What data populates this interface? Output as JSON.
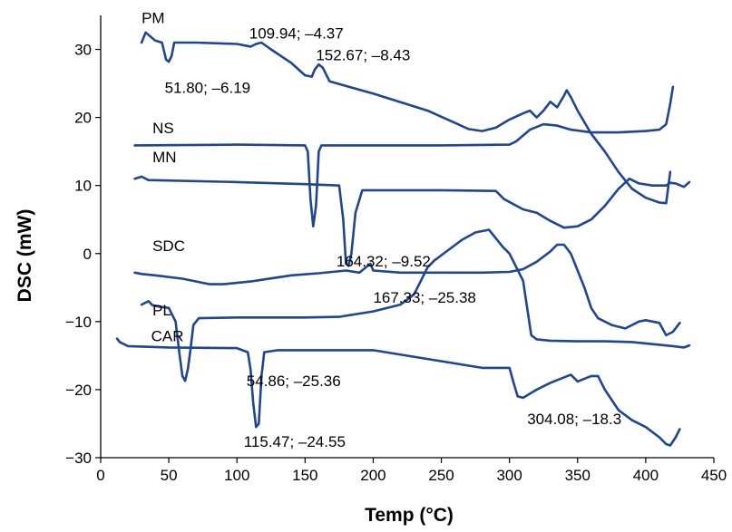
{
  "chart_data": {
    "type": "line",
    "title": "",
    "xlabel": "Temp (°C)",
    "ylabel": "DSC (mW)",
    "xlim": [
      0,
      450
    ],
    "ylim": [
      -30,
      35
    ],
    "x_ticks": [
      0,
      50,
      100,
      150,
      200,
      250,
      300,
      350,
      400,
      450
    ],
    "y_ticks": [
      -30,
      -20,
      -10,
      0,
      10,
      20,
      30
    ],
    "grid": false,
    "legend": "none",
    "line_color": "#1f4597",
    "series": [
      {
        "name": "PM",
        "label_at": [
          30,
          33.9
        ],
        "points": [
          [
            30,
            31
          ],
          [
            33,
            32.5
          ],
          [
            40,
            31.3
          ],
          [
            45,
            31
          ],
          [
            48,
            28.5
          ],
          [
            50,
            28.2
          ],
          [
            52,
            29
          ],
          [
            54,
            31
          ],
          [
            70,
            31
          ],
          [
            100,
            30.8
          ],
          [
            108,
            30.5
          ],
          [
            110,
            30.4
          ],
          [
            114,
            30.8
          ],
          [
            118,
            31
          ],
          [
            125,
            30
          ],
          [
            140,
            28
          ],
          [
            150,
            26.2
          ],
          [
            155,
            26
          ],
          [
            157,
            27
          ],
          [
            160,
            27.8
          ],
          [
            163,
            27.3
          ],
          [
            168,
            25.3
          ],
          [
            200,
            23.5
          ],
          [
            240,
            21
          ],
          [
            260,
            19.2
          ],
          [
            270,
            18.3
          ],
          [
            280,
            18
          ],
          [
            290,
            18.5
          ],
          [
            300,
            19.7
          ],
          [
            310,
            20.6
          ],
          [
            315,
            21
          ],
          [
            320,
            20
          ],
          [
            325,
            21
          ],
          [
            330,
            22.3
          ],
          [
            335,
            21.5
          ],
          [
            340,
            23.2
          ],
          [
            342,
            24
          ],
          [
            345,
            23
          ],
          [
            350,
            21
          ],
          [
            360,
            17.6
          ],
          [
            370,
            15
          ],
          [
            380,
            12
          ],
          [
            390,
            9.5
          ],
          [
            400,
            8.2
          ],
          [
            410,
            7.5
          ],
          [
            415,
            7.4
          ],
          [
            418,
            12
          ]
        ]
      },
      {
        "name": "NS",
        "label_at": [
          38,
          17.7
        ],
        "points": [
          [
            25,
            15.9
          ],
          [
            100,
            16
          ],
          [
            150,
            15.9
          ],
          [
            152,
            15
          ],
          [
            154,
            8
          ],
          [
            156,
            4
          ],
          [
            158,
            7
          ],
          [
            160,
            15
          ],
          [
            162,
            15.9
          ],
          [
            250,
            15.9
          ],
          [
            300,
            16
          ],
          [
            305,
            16.5
          ],
          [
            315,
            18.2
          ],
          [
            325,
            19
          ],
          [
            335,
            18.8
          ],
          [
            345,
            18.2
          ],
          [
            360,
            17.8
          ],
          [
            380,
            17.8
          ],
          [
            400,
            18
          ],
          [
            410,
            18.2
          ],
          [
            415,
            19
          ],
          [
            418,
            22
          ],
          [
            420,
            24.5
          ]
        ]
      },
      {
        "name": "MN",
        "label_at": [
          38,
          13.4
        ],
        "points": [
          [
            25,
            11
          ],
          [
            30,
            11.3
          ],
          [
            35,
            10.8
          ],
          [
            100,
            10.5
          ],
          [
            150,
            10.2
          ],
          [
            175,
            10
          ],
          [
            178,
            5
          ],
          [
            180,
            -1.5
          ],
          [
            182,
            -1.8
          ],
          [
            184,
            0
          ],
          [
            187,
            6
          ],
          [
            192,
            9.3
          ],
          [
            250,
            9.3
          ],
          [
            290,
            9.2
          ],
          [
            296,
            8
          ],
          [
            310,
            6.5
          ],
          [
            320,
            6
          ],
          [
            330,
            4.8
          ],
          [
            340,
            3.8
          ],
          [
            350,
            4
          ],
          [
            360,
            5
          ],
          [
            370,
            7
          ],
          [
            380,
            9.5
          ],
          [
            388,
            11
          ],
          [
            395,
            10.3
          ],
          [
            405,
            10
          ],
          [
            415,
            10
          ],
          [
            418,
            10.4
          ],
          [
            422,
            10.3
          ],
          [
            428,
            9.8
          ],
          [
            432,
            10.5
          ]
        ]
      },
      {
        "name": "SDC",
        "label_at": [
          38,
          0.4
        ],
        "points": [
          [
            25,
            -2.8
          ],
          [
            30,
            -3
          ],
          [
            40,
            -3.2
          ],
          [
            60,
            -3.7
          ],
          [
            80,
            -4.5
          ],
          [
            90,
            -4.5
          ],
          [
            100,
            -4.3
          ],
          [
            110,
            -4.1
          ],
          [
            120,
            -3.8
          ],
          [
            140,
            -3.2
          ],
          [
            160,
            -2.9
          ],
          [
            180,
            -2.5
          ],
          [
            190,
            -2.8
          ],
          [
            196,
            -1.8
          ],
          [
            198,
            -1.5
          ],
          [
            200,
            -2.5
          ],
          [
            220,
            -2.8
          ],
          [
            250,
            -2.8
          ],
          [
            280,
            -2.8
          ],
          [
            300,
            -2.7
          ],
          [
            310,
            -2.3
          ],
          [
            320,
            -1.2
          ],
          [
            330,
            0.3
          ],
          [
            335,
            1.3
          ],
          [
            340,
            1.3
          ],
          [
            345,
            0
          ],
          [
            350,
            -2.5
          ],
          [
            355,
            -5
          ],
          [
            360,
            -8
          ],
          [
            365,
            -9.5
          ],
          [
            375,
            -10.5
          ],
          [
            385,
            -11
          ],
          [
            395,
            -10
          ],
          [
            400,
            -9.8
          ],
          [
            405,
            -10
          ],
          [
            410,
            -10.2
          ],
          [
            415,
            -12
          ],
          [
            420,
            -11.5
          ],
          [
            425,
            -10.2
          ]
        ]
      },
      {
        "name": "PL",
        "label_at": [
          38,
          -9.1
        ],
        "points": [
          [
            30,
            -7.5
          ],
          [
            35,
            -7
          ],
          [
            38,
            -7.6
          ],
          [
            43,
            -7.8
          ],
          [
            50,
            -8
          ],
          [
            55,
            -10
          ],
          [
            58,
            -15
          ],
          [
            60,
            -18
          ],
          [
            62,
            -18.7
          ],
          [
            64,
            -17
          ],
          [
            66,
            -14
          ],
          [
            68,
            -10.5
          ],
          [
            72,
            -9.5
          ],
          [
            100,
            -9.4
          ],
          [
            150,
            -9.4
          ],
          [
            175,
            -9.3
          ],
          [
            200,
            -8.5
          ],
          [
            220,
            -7.5
          ],
          [
            230,
            -6
          ],
          [
            240,
            -2
          ],
          [
            245,
            -1
          ],
          [
            255,
            0.5
          ],
          [
            265,
            2
          ],
          [
            275,
            3.1
          ],
          [
            285,
            3.5
          ],
          [
            295,
            1
          ],
          [
            300,
            0
          ],
          [
            310,
            -4
          ],
          [
            316,
            -12
          ],
          [
            320,
            -12.6
          ],
          [
            330,
            -12.8
          ],
          [
            350,
            -12.9
          ],
          [
            370,
            -12.9
          ],
          [
            390,
            -13
          ],
          [
            400,
            -13.2
          ],
          [
            410,
            -13.4
          ],
          [
            420,
            -13.6
          ],
          [
            428,
            -13.8
          ],
          [
            432,
            -13.5
          ]
        ]
      },
      {
        "name": "CAR",
        "label_at": [
          37,
          -12.9
        ],
        "points": [
          [
            12,
            -12.5
          ],
          [
            14,
            -13
          ],
          [
            20,
            -13.6
          ],
          [
            50,
            -13.8
          ],
          [
            100,
            -13.9
          ],
          [
            108,
            -14.5
          ],
          [
            110,
            -17
          ],
          [
            112,
            -22
          ],
          [
            114,
            -25.5
          ],
          [
            116,
            -25
          ],
          [
            118,
            -18
          ],
          [
            120,
            -14.5
          ],
          [
            130,
            -14.2
          ],
          [
            200,
            -14.2
          ],
          [
            240,
            -15.5
          ],
          [
            280,
            -16.8
          ],
          [
            300,
            -16.8
          ],
          [
            303,
            -19
          ],
          [
            306,
            -21
          ],
          [
            310,
            -21.2
          ],
          [
            320,
            -20
          ],
          [
            330,
            -19
          ],
          [
            340,
            -18.2
          ],
          [
            345,
            -17.8
          ],
          [
            350,
            -18.8
          ],
          [
            360,
            -18
          ],
          [
            365,
            -18
          ],
          [
            370,
            -20
          ],
          [
            380,
            -23
          ],
          [
            390,
            -24.5
          ],
          [
            400,
            -25.5
          ],
          [
            410,
            -27
          ],
          [
            415,
            -28
          ],
          [
            418,
            -28.2
          ],
          [
            422,
            -27
          ],
          [
            425,
            -25.8
          ]
        ]
      }
    ],
    "annotations": [
      {
        "text": "109.94; –4.37",
        "at": [
          109,
          31.6
        ]
      },
      {
        "text": "152.67; –8.43",
        "at": [
          158,
          28.4
        ]
      },
      {
        "text": "51.80; –6.19",
        "at": [
          47,
          23.6
        ]
      },
      {
        "text": "164.32; –9.52",
        "at": [
          173,
          -1.9
        ]
      },
      {
        "text": "167.33; –25.38",
        "at": [
          200,
          -7.2
        ]
      },
      {
        "text": "54.86; –25.36",
        "at": [
          107,
          -19.5
        ]
      },
      {
        "text": "115.47; –24.55",
        "at": [
          105,
          -28.4
        ]
      },
      {
        "text": "304.08; –18.3",
        "at": [
          313,
          -25.1
        ]
      }
    ]
  }
}
